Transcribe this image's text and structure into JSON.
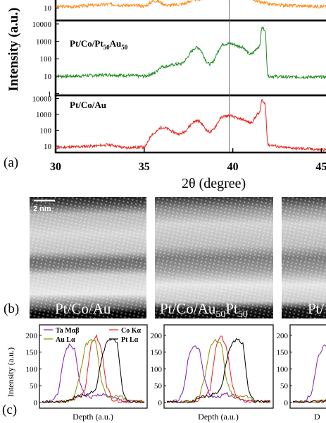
{
  "panel_a": {
    "label": "(a)",
    "ylabel": "Intensity (a.u.)",
    "xlabel": "2θ (degree)",
    "x_ticks": [
      "30",
      "35",
      "40",
      "45"
    ],
    "vertical_marker_x": 39.8,
    "subplots": [
      {
        "name": "",
        "color": "#ff8c1a",
        "y_ticks": [
          "10"
        ],
        "y_tick_values": [
          10
        ],
        "ylim_log10": [
          0.3,
          1.6
        ]
      },
      {
        "name": "Pt/Co/Pt",
        "name_sub1": "50",
        "name_mid": "Au",
        "name_sub2": "50",
        "color": "#1f8a1f",
        "y_ticks": [
          "10000",
          "1000",
          "100",
          "10",
          "1"
        ],
        "y_tick_values": [
          10000,
          1000,
          100,
          10,
          1
        ],
        "ylim_log10": [
          -0.1,
          4.2
        ]
      },
      {
        "name": "Pt/Co/Au",
        "color": "#e8231c",
        "y_ticks": [
          "10000",
          "1000",
          "100",
          "10"
        ],
        "y_tick_values": [
          10000,
          1000,
          100,
          10
        ],
        "ylim_log10": [
          0.6,
          4.2
        ]
      }
    ]
  },
  "panel_b": {
    "label": "(b)",
    "scalebar": "2 nm",
    "images": [
      {
        "caption": "Pt/Co/Au"
      },
      {
        "caption": "Pt/Co/Au",
        "caption_sub1": "50",
        "caption_mid": "Pt",
        "caption_sub2": "50"
      },
      {
        "caption": "Pt/"
      }
    ]
  },
  "panel_c": {
    "label": "(c)",
    "ylabel": "Intensity (a.u.)",
    "xlabel": "Depth (a.u.)",
    "y_ticks": [
      "0",
      "50",
      "100",
      "150",
      "200"
    ],
    "legend": [
      {
        "label": "Ta Mαβ",
        "color": "#7f1fa8"
      },
      {
        "label": "Co Kα",
        "color": "#e8231c"
      },
      {
        "label": "Au Lα",
        "color": "#8c8c00"
      },
      {
        "label": "Pt Lα",
        "color": "#000000"
      }
    ]
  },
  "chart_data": [
    {
      "type": "line",
      "title": "",
      "xlabel": "2θ (degree)",
      "ylabel": "Intensity (a.u.)",
      "xlim": [
        30,
        45.5
      ],
      "scale": "log",
      "series": [
        {
          "name": "Pt/Co/Pt50Au50",
          "color": "#1f8a1f",
          "x": [
            30,
            31,
            32,
            33,
            34,
            35,
            35.5,
            36,
            37,
            38,
            38.7,
            39.5,
            39.8,
            40.5,
            41,
            41.5,
            41.65,
            41.8,
            42,
            43,
            44,
            45,
            45.5
          ],
          "values": [
            10,
            10,
            11,
            12,
            11,
            10,
            14,
            35,
            50,
            450,
            50,
            700,
            750,
            500,
            180,
            500,
            6000,
            5000,
            10,
            9,
            9,
            9,
            9
          ]
        },
        {
          "name": "Pt/Co/Au",
          "color": "#e8231c",
          "x": [
            30,
            31,
            32,
            33,
            34,
            35,
            35.5,
            36,
            37,
            38,
            38.7,
            39.5,
            39.8,
            40.5,
            41,
            41.5,
            41.65,
            41.8,
            42,
            43,
            44,
            45,
            45.5
          ],
          "values": [
            8,
            9,
            10,
            12,
            8,
            9,
            60,
            150,
            60,
            400,
            80,
            750,
            800,
            500,
            300,
            1200,
            8000,
            5000,
            12,
            8,
            7,
            6,
            6
          ]
        }
      ]
    },
    {
      "type": "line",
      "title": "",
      "xlabel": "Depth (a.u.)",
      "ylabel": "Intensity (a.u.)",
      "ylim": [
        0,
        210
      ],
      "series": [
        {
          "name": "Ta Mαβ",
          "color": "#7f1fa8",
          "values": [
            0,
            2,
            5,
            30,
            140,
            170,
            160,
            60,
            20,
            15,
            20,
            25,
            20,
            15,
            10,
            5,
            3,
            2,
            2,
            2
          ]
        },
        {
          "name": "Co Kα",
          "color": "#e8231c",
          "values": [
            0,
            0,
            0,
            0,
            2,
            5,
            10,
            20,
            40,
            170,
            200,
            160,
            50,
            10,
            5,
            3,
            2,
            2,
            2,
            2
          ]
        },
        {
          "name": "Au Lα",
          "color": "#8c8c00",
          "values": [
            0,
            0,
            0,
            0,
            2,
            5,
            20,
            80,
            170,
            185,
            180,
            60,
            20,
            15,
            20,
            15,
            5,
            2,
            2,
            2
          ]
        },
        {
          "name": "Pt Lα",
          "color": "#000000",
          "values": [
            0,
            0,
            0,
            0,
            1,
            5,
            15,
            20,
            20,
            30,
            40,
            130,
            180,
            190,
            175,
            30,
            5,
            2,
            1,
            1
          ]
        }
      ]
    }
  ]
}
